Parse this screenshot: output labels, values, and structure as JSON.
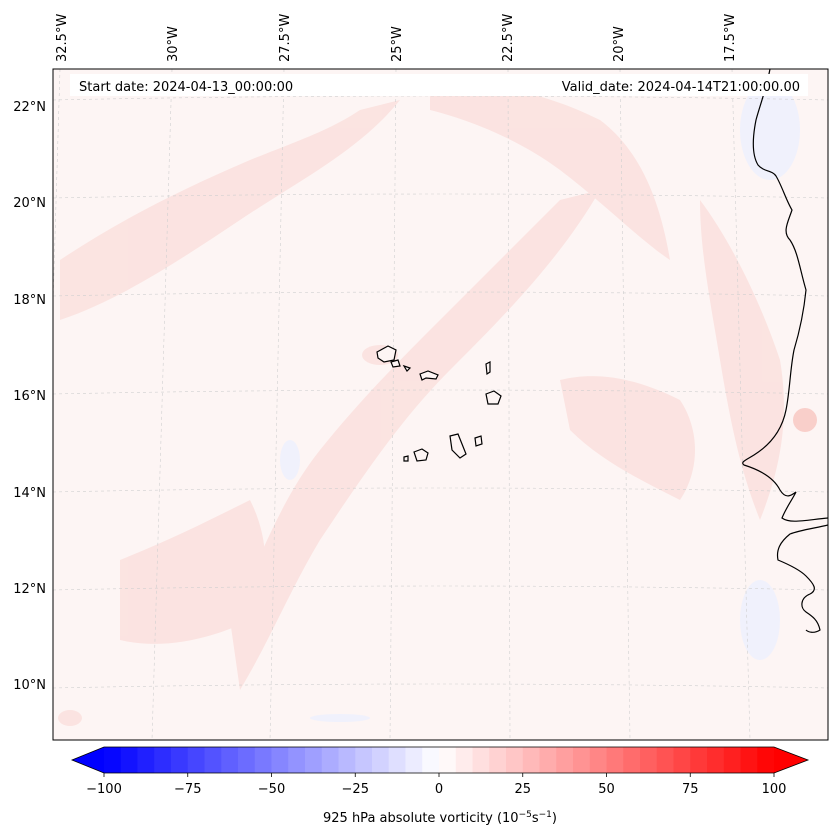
{
  "header": {
    "start_date": "Start date: 2024-04-13_00:00:00",
    "valid_date": "Valid_date: 2024-04-14T21:00:00.00"
  },
  "map": {
    "variable": "925 hPa absolute vorticity",
    "longitude_labels": [
      "32.5°W",
      "30°W",
      "27.5°W",
      "25°W",
      "22.5°W",
      "20°W",
      "17.5°W"
    ],
    "latitude_labels": [
      "22°N",
      "20°N",
      "18°N",
      "16°N",
      "14°N",
      "12°N",
      "10°N"
    ]
  },
  "colorbar": {
    "label_prefix": "925 hPa absolute vorticity (10",
    "exp1": "−5",
    "mid": "s",
    "exp2": "−1",
    "suffix": ")",
    "tick_labels": [
      "−100",
      "−75",
      "−50",
      "−25",
      "0",
      "25",
      "50",
      "75",
      "100"
    ],
    "ticks": [
      -100,
      -75,
      -50,
      -25,
      0,
      25,
      50,
      75,
      100
    ],
    "range": [
      -100,
      100
    ],
    "step": 5,
    "negative_color": "#0000ff",
    "positive_color": "#ff0000"
  }
}
